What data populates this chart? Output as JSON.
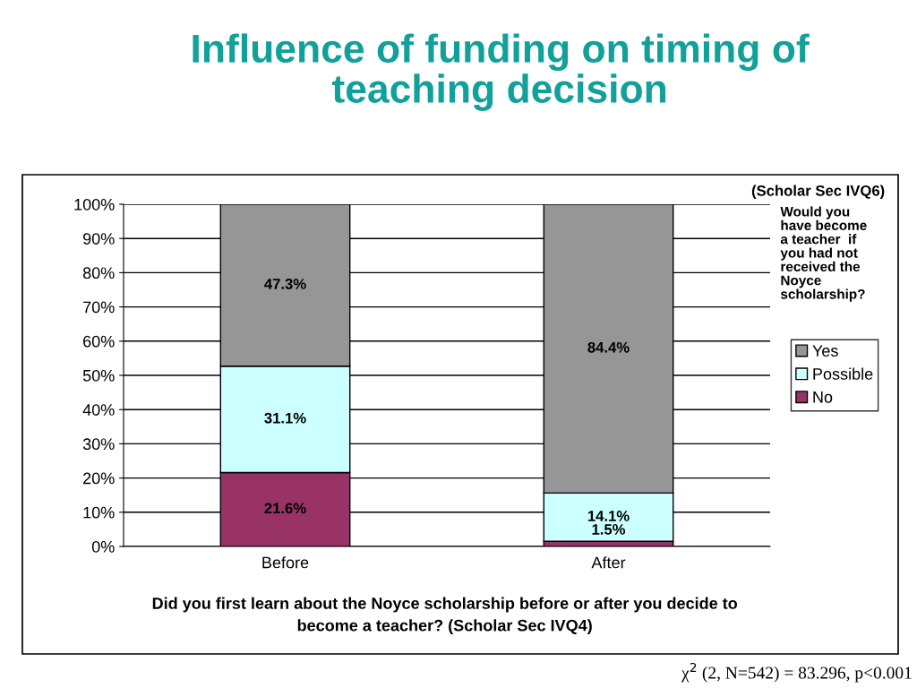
{
  "chart_data": {
    "type": "bar",
    "stacked": true,
    "title": "Influence of funding on timing of\nteaching decision",
    "xlabel": "Did you first learn about the Noyce scholarship before or after you decide to\nbecome a teacher? (Scholar Sec IVQ4)",
    "categories": [
      "Before",
      "After"
    ],
    "series": [
      {
        "name": "No",
        "color": "#993366",
        "values": [
          21.6,
          1.5
        ],
        "value_labels": [
          "21.6%",
          "1.5%"
        ]
      },
      {
        "name": "Possible",
        "color": "#ccffff",
        "values": [
          31.1,
          14.1
        ],
        "value_labels": [
          "31.1%",
          "14.1%"
        ]
      },
      {
        "name": "Yes",
        "color": "#969696",
        "values": [
          47.3,
          84.4
        ],
        "value_labels": [
          "47.3%",
          "84.4%"
        ]
      }
    ],
    "ylim": [
      0,
      100
    ],
    "yticks": [
      {
        "value": 0,
        "label": "0%"
      },
      {
        "value": 10,
        "label": "10%"
      },
      {
        "value": 20,
        "label": "20%"
      },
      {
        "value": 30,
        "label": "30%"
      },
      {
        "value": 40,
        "label": "40%"
      },
      {
        "value": 50,
        "label": "50%"
      },
      {
        "value": 60,
        "label": "60%"
      },
      {
        "value": 70,
        "label": "70%"
      },
      {
        "value": 80,
        "label": "80%"
      },
      {
        "value": 90,
        "label": "90%"
      },
      {
        "value": 100,
        "label": "100%"
      }
    ],
    "grid": "y",
    "legend": "right",
    "annotations": [
      "(Scholar Sec IVQ6)",
      "Would you\nhave become\na teacher  if\nyou had not\nreceived the\nNoyce\nscholarship?",
      "χ$^{2}$ (2, N=542) = 83.296, p<0.001"
    ]
  }
}
